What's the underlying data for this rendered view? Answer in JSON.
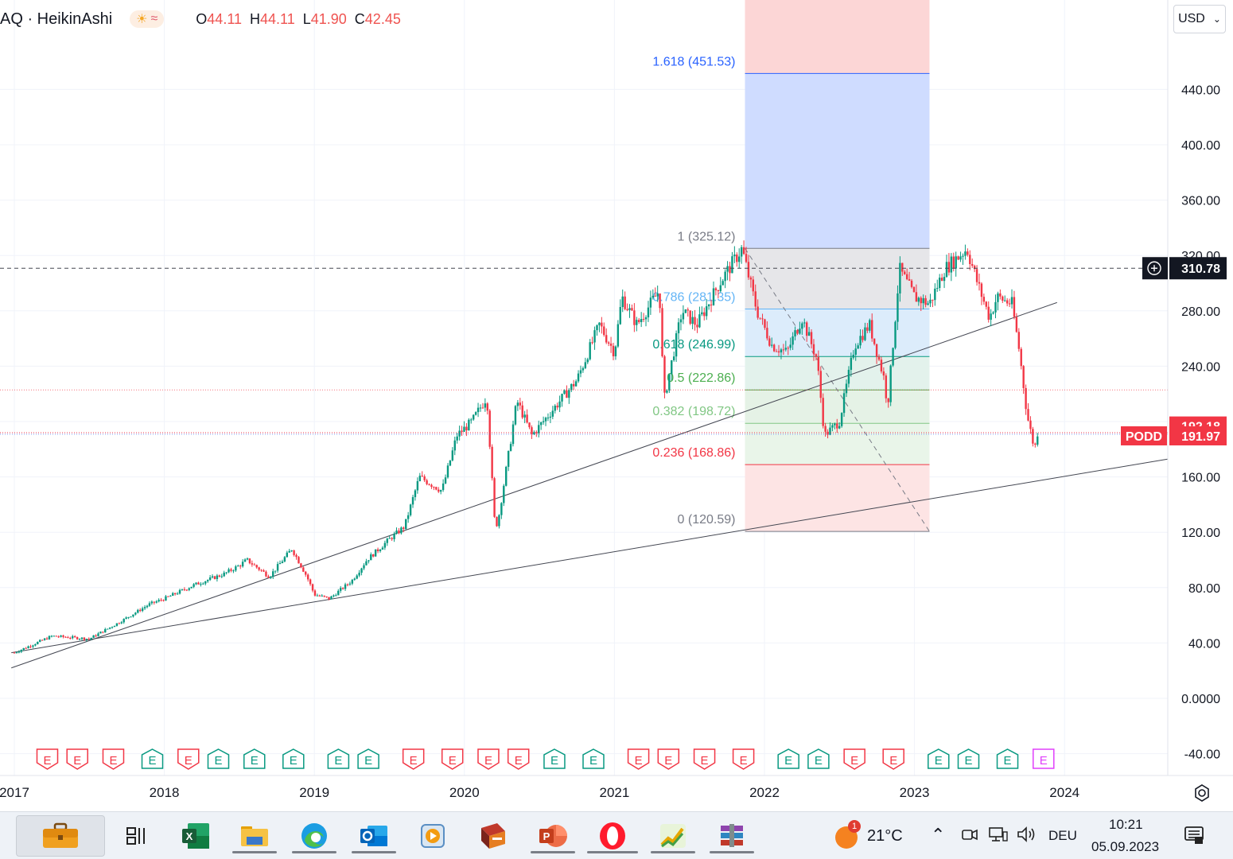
{
  "header": {
    "symbol_title": "AQ · HeikinAshi",
    "ohlc": [
      {
        "key": "O",
        "value": "44.11"
      },
      {
        "key": "H",
        "value": "44.11"
      },
      {
        "key": "L",
        "value": "41.90"
      },
      {
        "key": "C",
        "value": "42.45"
      }
    ],
    "weather_icons": [
      "sun-cloud-icon",
      "wave-icon"
    ],
    "currency": "USD"
  },
  "chart_data": {
    "type": "candlestick",
    "symbol": "PODD",
    "x_ticks": [
      "2017",
      "2018",
      "2019",
      "2020",
      "2021",
      "2022",
      "2023",
      "2024"
    ],
    "y_ticks": [
      "440.00",
      "400.00",
      "360.00",
      "320.00",
      "280.00",
      "240.00",
      "200.00",
      "160.00",
      "120.00",
      "80.00",
      "40.00",
      "0.0000",
      "-40.00"
    ],
    "ylim": [
      -50,
      470
    ],
    "xlim": [
      2016.98,
      2024.75
    ],
    "crosshair_price": "310.78",
    "last_price": "191.97",
    "prev_price": "192.18",
    "price_label": "PODD",
    "price_path": [
      [
        2017.0,
        33
      ],
      [
        2017.25,
        45
      ],
      [
        2017.5,
        43
      ],
      [
        2017.7,
        55
      ],
      [
        2017.9,
        68
      ],
      [
        2018.0,
        72
      ],
      [
        2018.2,
        82
      ],
      [
        2018.4,
        90
      ],
      [
        2018.5,
        96
      ],
      [
        2018.55,
        100
      ],
      [
        2018.7,
        88
      ],
      [
        2018.85,
        108
      ],
      [
        2018.95,
        88
      ],
      [
        2019.0,
        75
      ],
      [
        2019.1,
        72
      ],
      [
        2019.25,
        85
      ],
      [
        2019.35,
        100
      ],
      [
        2019.5,
        115
      ],
      [
        2019.6,
        124
      ],
      [
        2019.7,
        160
      ],
      [
        2019.85,
        150
      ],
      [
        2019.95,
        190
      ],
      [
        2020.05,
        200
      ],
      [
        2020.15,
        218
      ],
      [
        2020.2,
        130
      ],
      [
        2020.22,
        125
      ],
      [
        2020.35,
        215
      ],
      [
        2020.45,
        190
      ],
      [
        2020.6,
        210
      ],
      [
        2020.75,
        230
      ],
      [
        2020.9,
        270
      ],
      [
        2021.0,
        250
      ],
      [
        2021.05,
        290
      ],
      [
        2021.15,
        270
      ],
      [
        2021.3,
        295
      ],
      [
        2021.33,
        215
      ],
      [
        2021.45,
        280
      ],
      [
        2021.55,
        270
      ],
      [
        2021.7,
        300
      ],
      [
        2021.85,
        325
      ],
      [
        2021.95,
        280
      ],
      [
        2022.05,
        255
      ],
      [
        2022.15,
        250
      ],
      [
        2022.25,
        275
      ],
      [
        2022.35,
        245
      ],
      [
        2022.4,
        190
      ],
      [
        2022.5,
        200
      ],
      [
        2022.6,
        255
      ],
      [
        2022.7,
        270
      ],
      [
        2022.8,
        230
      ],
      [
        2022.82,
        210
      ],
      [
        2022.9,
        310
      ],
      [
        2023.0,
        290
      ],
      [
        2023.1,
        285
      ],
      [
        2023.2,
        310
      ],
      [
        2023.35,
        325
      ],
      [
        2023.42,
        300
      ],
      [
        2023.5,
        275
      ],
      [
        2023.55,
        290
      ],
      [
        2023.65,
        285
      ],
      [
        2023.7,
        250
      ],
      [
        2023.75,
        205
      ],
      [
        2023.8,
        180
      ],
      [
        2023.82,
        192
      ]
    ],
    "fibonacci": {
      "levels": [
        {
          "ratio": "1.618",
          "value": 451.53,
          "label": "1.618 (451.53)",
          "color": "#2962ff"
        },
        {
          "ratio": "1",
          "value": 325.12,
          "label": "1 (325.12)",
          "color": "#787b86"
        },
        {
          "ratio": "0.786",
          "value": 281.35,
          "label": "0.786 (281.35)",
          "color": "#64b5f6"
        },
        {
          "ratio": "0.618",
          "value": 246.99,
          "label": "0.618 (246.99)",
          "color": "#089981"
        },
        {
          "ratio": "0.5",
          "value": 222.86,
          "label": "0.5 (222.86)",
          "color": "#4caf50"
        },
        {
          "ratio": "0.382",
          "value": 198.72,
          "label": "0.382 (198.72)",
          "color": "#81c784"
        },
        {
          "ratio": "0.236",
          "value": 168.86,
          "label": "0.236 (168.86)",
          "color": "#f23645"
        },
        {
          "ratio": "0",
          "value": 120.59,
          "label": "0 (120.59)",
          "color": "#787b86"
        }
      ],
      "x_start": 2021.87,
      "x_end": 2023.1
    },
    "trend_lines": [
      {
        "x1": 2016.98,
        "y1": 22,
        "x2": 2023.95,
        "y2": 286
      },
      {
        "x1": 2016.98,
        "y1": 33,
        "x2": 2024.75,
        "y2": 174
      }
    ],
    "earnings": [
      {
        "x": 2017.22,
        "kind": "miss"
      },
      {
        "x": 2017.42,
        "kind": "miss"
      },
      {
        "x": 2017.66,
        "kind": "miss"
      },
      {
        "x": 2017.92,
        "kind": "beat"
      },
      {
        "x": 2018.16,
        "kind": "miss"
      },
      {
        "x": 2018.36,
        "kind": "beat"
      },
      {
        "x": 2018.6,
        "kind": "beat"
      },
      {
        "x": 2018.86,
        "kind": "beat"
      },
      {
        "x": 2019.16,
        "kind": "beat"
      },
      {
        "x": 2019.36,
        "kind": "beat"
      },
      {
        "x": 2019.66,
        "kind": "miss"
      },
      {
        "x": 2019.92,
        "kind": "miss"
      },
      {
        "x": 2020.16,
        "kind": "miss"
      },
      {
        "x": 2020.36,
        "kind": "miss"
      },
      {
        "x": 2020.6,
        "kind": "beat"
      },
      {
        "x": 2020.86,
        "kind": "beat"
      },
      {
        "x": 2021.16,
        "kind": "miss"
      },
      {
        "x": 2021.36,
        "kind": "miss"
      },
      {
        "x": 2021.6,
        "kind": "miss"
      },
      {
        "x": 2021.86,
        "kind": "miss"
      },
      {
        "x": 2022.16,
        "kind": "beat"
      },
      {
        "x": 2022.36,
        "kind": "beat"
      },
      {
        "x": 2022.6,
        "kind": "miss"
      },
      {
        "x": 2022.86,
        "kind": "miss"
      },
      {
        "x": 2023.16,
        "kind": "beat"
      },
      {
        "x": 2023.36,
        "kind": "beat"
      },
      {
        "x": 2023.62,
        "kind": "beat"
      },
      {
        "x": 2023.86,
        "kind": "upcoming"
      }
    ],
    "earnings_letter": "E",
    "colors": {
      "up": "#089981",
      "down": "#f23645",
      "upcoming": "#e040fb",
      "label_red": "#f23645",
      "crosshair": "#131722"
    }
  },
  "taskbar": {
    "temperature": "21°C",
    "language": "DEU",
    "time": "10:21",
    "date": "05.09.2023",
    "weather_badge": "1",
    "apps": [
      "briefcase-icon",
      "task-view-icon",
      "excel-icon",
      "file-explorer-icon",
      "edge-icon",
      "outlook-icon",
      "media-player-icon",
      "archive-app-icon",
      "powerpoint-icon",
      "opera-icon",
      "stock-chart-icon",
      "winrar-icon"
    ]
  }
}
